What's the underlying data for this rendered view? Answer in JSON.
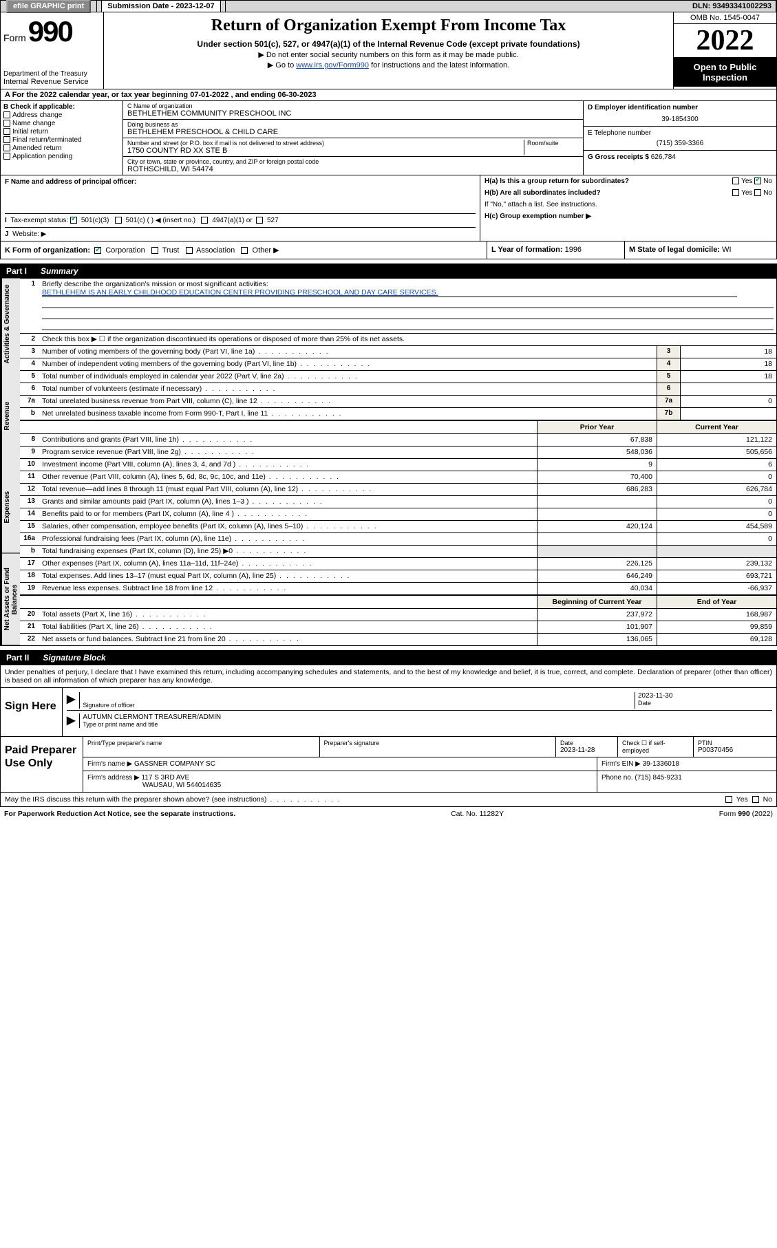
{
  "topbar": {
    "efile_label": "efile GRAPHIC print",
    "submission_label": "Submission Date - 2023-12-07",
    "dln": "DLN: 93493341002293"
  },
  "header": {
    "form_prefix": "Form",
    "form_number": "990",
    "title": "Return of Organization Exempt From Income Tax",
    "subtitle": "Under section 501(c), 527, or 4947(a)(1) of the Internal Revenue Code (except private foundations)",
    "note1": "▶ Do not enter social security numbers on this form as it may be made public.",
    "note2_pre": "▶ Go to ",
    "note2_link": "www.irs.gov/Form990",
    "note2_post": " for instructions and the latest information.",
    "dept": "Department of the Treasury",
    "irs": "Internal Revenue Service",
    "omb": "OMB No. 1545-0047",
    "year": "2022",
    "open_public": "Open to Public Inspection"
  },
  "line_a": "A For the 2022 calendar year, or tax year beginning 07-01-2022   , and ending 06-30-2023",
  "col_b": {
    "hdr": "B Check if applicable:",
    "items": [
      "Address change",
      "Name change",
      "Initial return",
      "Final return/terminated",
      "Amended return",
      "Application pending"
    ]
  },
  "col_c": {
    "name_label": "C Name of organization",
    "name": "BETHLETHEM COMMUNITY PRESCHOOL INC",
    "dba_label": "Doing business as",
    "dba": "BETHLEHEM PRESCHOOL & CHILD CARE",
    "addr_label": "Number and street (or P.O. box if mail is not delivered to street address)",
    "room_label": "Room/suite",
    "addr": "1750 COUNTY RD XX STE B",
    "city_label": "City or town, state or province, country, and ZIP or foreign postal code",
    "city": "ROTHSCHILD, WI  54474"
  },
  "col_de": {
    "d_label": "D Employer identification number",
    "d_val": "39-1854300",
    "e_label": "E Telephone number",
    "e_val": "(715) 359-3366",
    "g_label": "G Gross receipts $",
    "g_val": "626,784"
  },
  "row_f": {
    "f_label": "F  Name and address of principal officer:",
    "i_label": "Tax-exempt status:",
    "i_501c3": "501(c)(3)",
    "i_501c": "501(c) (  ) ◀ (insert no.)",
    "i_4947": "4947(a)(1) or",
    "i_527": "527",
    "j_label": "Website: ▶"
  },
  "col_h": {
    "ha": "H(a)  Is this a group return for subordinates?",
    "ha_yes": "Yes",
    "ha_no": "No",
    "hb": "H(b)  Are all subordinates included?",
    "hb_yes": "Yes",
    "hb_no": "No",
    "hb_note": "If \"No,\" attach a list. See instructions.",
    "hc": "H(c)  Group exemption number ▶"
  },
  "row_k": {
    "k_label": "K Form of organization:",
    "k_corp": "Corporation",
    "k_trust": "Trust",
    "k_assoc": "Association",
    "k_other": "Other ▶",
    "l_label": "L Year of formation:",
    "l_val": "1996",
    "m_label": "M State of legal domicile:",
    "m_val": "WI"
  },
  "part1": {
    "num": "Part I",
    "title": "Summary"
  },
  "vtabs": [
    "Activities & Governance",
    "Revenue",
    "Expenses",
    "Net Assets or Fund Balances"
  ],
  "summary": {
    "l1_label": "Briefly describe the organization's mission or most significant activities:",
    "l1_text": "BETHLEHEM IS AN EARLY CHILDHOOD EDUCATION CENTER PROVIDING PRESCHOOL AND DAY CARE SERVICES.",
    "l2": "Check this box ▶ ☐  if the organization discontinued its operations or disposed of more than 25% of its net assets.",
    "rows_single": [
      {
        "n": "3",
        "d": "Number of voting members of the governing body (Part VI, line 1a)",
        "c": "3",
        "v": "18"
      },
      {
        "n": "4",
        "d": "Number of independent voting members of the governing body (Part VI, line 1b)",
        "c": "4",
        "v": "18"
      },
      {
        "n": "5",
        "d": "Total number of individuals employed in calendar year 2022 (Part V, line 2a)",
        "c": "5",
        "v": "18"
      },
      {
        "n": "6",
        "d": "Total number of volunteers (estimate if necessary)",
        "c": "6",
        "v": ""
      },
      {
        "n": "7a",
        "d": "Total unrelated business revenue from Part VIII, column (C), line 12",
        "c": "7a",
        "v": "0"
      },
      {
        "n": "b",
        "d": "Net unrelated business taxable income from Form 990-T, Part I, line 11",
        "c": "7b",
        "v": ""
      }
    ],
    "col_hdr_prior": "Prior Year",
    "col_hdr_current": "Current Year",
    "rows_rev": [
      {
        "n": "8",
        "d": "Contributions and grants (Part VIII, line 1h)",
        "p": "67,838",
        "c": "121,122"
      },
      {
        "n": "9",
        "d": "Program service revenue (Part VIII, line 2g)",
        "p": "548,036",
        "c": "505,656"
      },
      {
        "n": "10",
        "d": "Investment income (Part VIII, column (A), lines 3, 4, and 7d )",
        "p": "9",
        "c": "6"
      },
      {
        "n": "11",
        "d": "Other revenue (Part VIII, column (A), lines 5, 6d, 8c, 9c, 10c, and 11e)",
        "p": "70,400",
        "c": "0"
      },
      {
        "n": "12",
        "d": "Total revenue—add lines 8 through 11 (must equal Part VIII, column (A), line 12)",
        "p": "686,283",
        "c": "626,784"
      }
    ],
    "rows_exp": [
      {
        "n": "13",
        "d": "Grants and similar amounts paid (Part IX, column (A), lines 1–3 )",
        "p": "",
        "c": "0"
      },
      {
        "n": "14",
        "d": "Benefits paid to or for members (Part IX, column (A), line 4 )",
        "p": "",
        "c": "0"
      },
      {
        "n": "15",
        "d": "Salaries, other compensation, employee benefits (Part IX, column (A), lines 5–10)",
        "p": "420,124",
        "c": "454,589"
      },
      {
        "n": "16a",
        "d": "Professional fundraising fees (Part IX, column (A), line 11e)",
        "p": "",
        "c": "0"
      },
      {
        "n": "b",
        "d": "Total fundraising expenses (Part IX, column (D), line 25) ▶0",
        "p": "shade",
        "c": "shade"
      },
      {
        "n": "17",
        "d": "Other expenses (Part IX, column (A), lines 11a–11d, 11f–24e)",
        "p": "226,125",
        "c": "239,132"
      },
      {
        "n": "18",
        "d": "Total expenses. Add lines 13–17 (must equal Part IX, column (A), line 25)",
        "p": "646,249",
        "c": "693,721"
      },
      {
        "n": "19",
        "d": "Revenue less expenses. Subtract line 18 from line 12",
        "p": "40,034",
        "c": "-66,937"
      }
    ],
    "col_hdr_begin": "Beginning of Current Year",
    "col_hdr_end": "End of Year",
    "rows_net": [
      {
        "n": "20",
        "d": "Total assets (Part X, line 16)",
        "p": "237,972",
        "c": "168,987"
      },
      {
        "n": "21",
        "d": "Total liabilities (Part X, line 26)",
        "p": "101,907",
        "c": "99,859"
      },
      {
        "n": "22",
        "d": "Net assets or fund balances. Subtract line 21 from line 20",
        "p": "136,065",
        "c": "69,128"
      }
    ]
  },
  "part2": {
    "num": "Part II",
    "title": "Signature Block"
  },
  "sig_text": "Under penalties of perjury, I declare that I have examined this return, including accompanying schedules and statements, and to the best of my knowledge and belief, it is true, correct, and complete. Declaration of preparer (other than officer) is based on all information of which preparer has any knowledge.",
  "sign": {
    "label": "Sign Here",
    "officer_sig_label": "Signature of officer",
    "date": "2023-11-30",
    "date_label": "Date",
    "name": "AUTUMN CLERMONT TREASURER/ADMIN",
    "name_label": "Type or print name and title"
  },
  "paid": {
    "label": "Paid Preparer Use Only",
    "h_name": "Print/Type preparer's name",
    "h_sig": "Preparer's signature",
    "h_date": "Date",
    "h_date_val": "2023-11-28",
    "h_check": "Check ☐ if self-employed",
    "h_ptin": "PTIN",
    "h_ptin_val": "P00370456",
    "firm_name_label": "Firm's name   ▶",
    "firm_name": "GASSNER COMPANY SC",
    "firm_ein_label": "Firm's EIN ▶",
    "firm_ein": "39-1336018",
    "firm_addr_label": "Firm's address ▶",
    "firm_addr": "117 S 3RD AVE",
    "firm_addr2": "WAUSAU, WI  544014635",
    "firm_phone_label": "Phone no.",
    "firm_phone": "(715) 845-9231"
  },
  "may_irs": "May the IRS discuss this return with the preparer shown above? (see instructions)",
  "may_yes": "Yes",
  "may_no": "No",
  "footer": {
    "left": "For Paperwork Reduction Act Notice, see the separate instructions.",
    "mid": "Cat. No. 11282Y",
    "right": "Form 990 (2022)"
  }
}
